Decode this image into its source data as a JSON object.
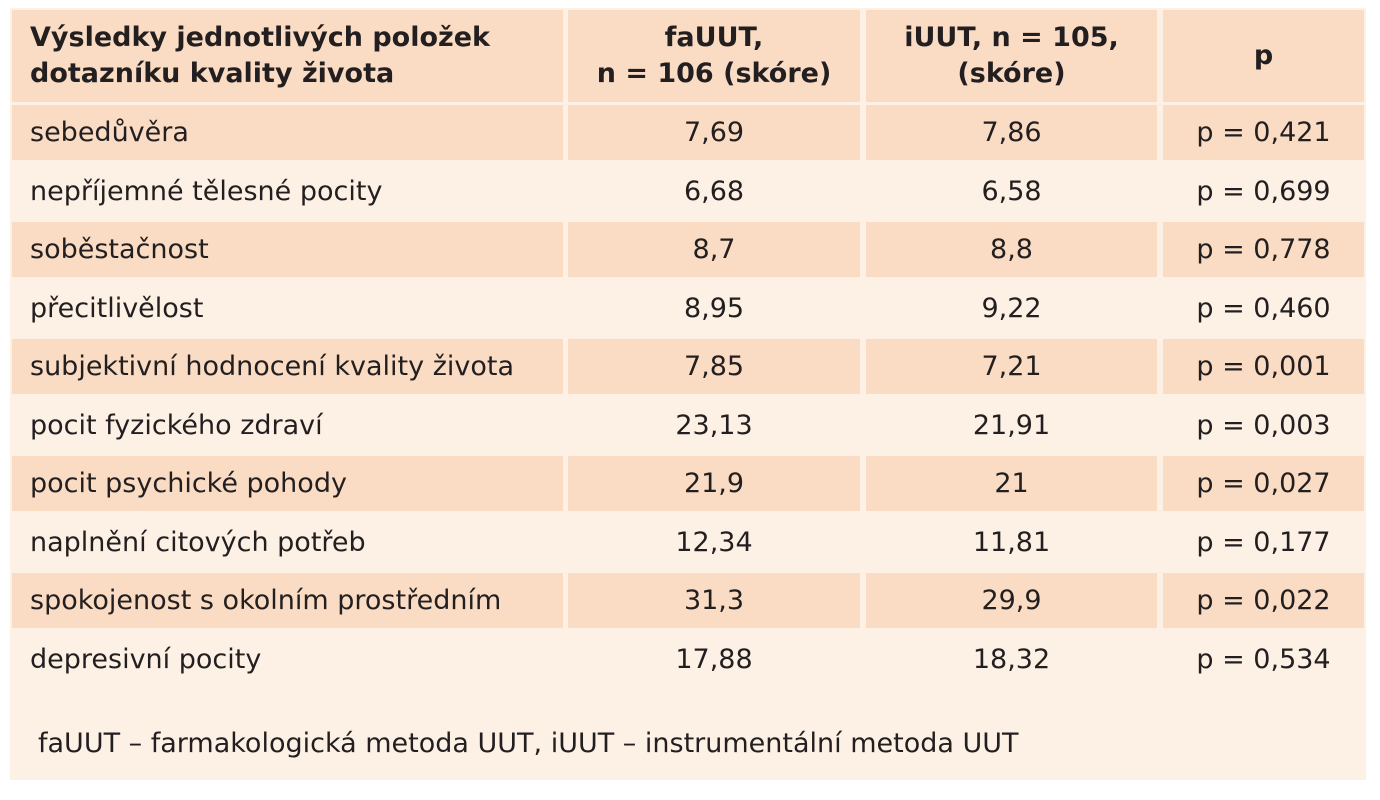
{
  "table": {
    "header": [
      [
        "Výsledky jednotlivých položek",
        "dotazníku kvality života"
      ],
      [
        "faUUT,",
        "n = 106 (skóre)"
      ],
      [
        "iUUT, n = 105,",
        "(skóre)"
      ],
      [
        "p"
      ]
    ],
    "rows": [
      [
        "sebedůvěra",
        "7,69",
        "7,86",
        "p = 0,421"
      ],
      [
        "nepříjemné tělesné pocity",
        "6,68",
        "6,58",
        "p = 0,699"
      ],
      [
        "soběstačnost",
        "8,7",
        "8,8",
        "p = 0,778"
      ],
      [
        "přecitlivělost",
        "8,95",
        "9,22",
        "p = 0,460"
      ],
      [
        "subjektivní hodnocení kvality života",
        "7,85",
        "7,21",
        "p = 0,001"
      ],
      [
        "pocit fyzického zdraví",
        "23,13",
        "21,91",
        "p = 0,003"
      ],
      [
        "pocit psychické pohody",
        "21,9",
        "21",
        "p = 0,027"
      ],
      [
        "naplnění citových potřeb",
        "12,34",
        "11,81",
        "p = 0,177"
      ],
      [
        "spokojenost s okolním prostředním",
        "31,3",
        "29,9",
        "p = 0,022"
      ],
      [
        "depresivní pocity",
        "17,88",
        "18,32",
        "p = 0,534"
      ]
    ],
    "note": "faUUT – farmakologická metoda UUT, iUUT – instrumentální metoda UUT"
  }
}
